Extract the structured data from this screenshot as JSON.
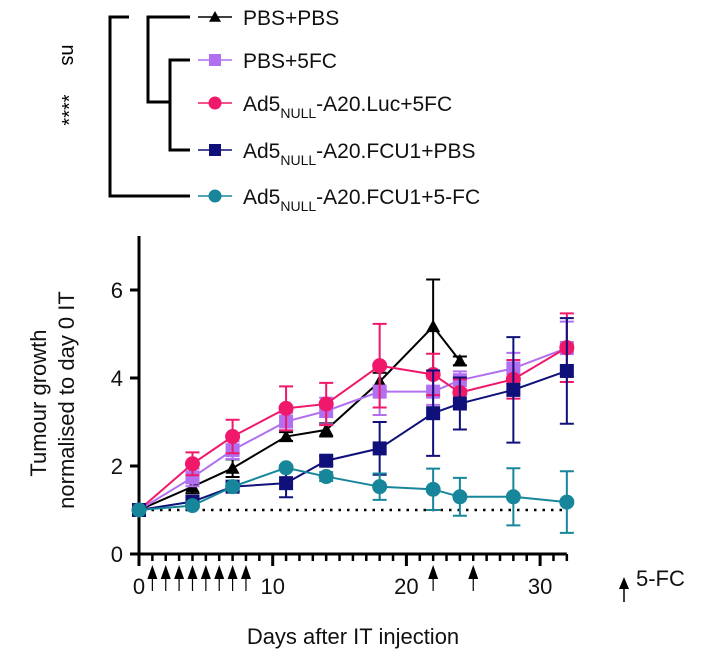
{
  "chart_data": {
    "type": "line",
    "xlabel": "Days after IT injection",
    "ylabel": [
      "Tumour growth",
      "normalised to day 0 IT"
    ],
    "xlim": [
      0,
      32
    ],
    "ylim": [
      0,
      7
    ],
    "xticks": [
      "0",
      "10",
      "20",
      "30"
    ],
    "yticks": [
      "0",
      "2",
      "4",
      "6"
    ],
    "grid": false,
    "reference_line": {
      "y": 1,
      "style": "dotted"
    },
    "dosing_arrows": {
      "label": "5-FC",
      "days": [
        1,
        2,
        3,
        4,
        5,
        6,
        7,
        8,
        22,
        25
      ]
    },
    "legend_placement": "top",
    "significance": {
      "inner": "ns",
      "outer": "****"
    },
    "series": [
      {
        "name": "PBS+PBS",
        "label": {
          "pre": "PBS+PBS",
          "sub": "",
          "post": ""
        },
        "color": "#000000",
        "marker": "triangle",
        "x": [
          0,
          4,
          7,
          11,
          14,
          18,
          22,
          24
        ],
        "y": [
          1,
          1.53,
          1.95,
          2.67,
          2.82,
          3.92,
          5.17,
          4.39
        ],
        "err": [
          0,
          0.15,
          0.2,
          0.1,
          0.15,
          0.2,
          1.07,
          0.1
        ]
      },
      {
        "name": "PBS+5FC",
        "label": {
          "pre": "PBS+5FC",
          "sub": "",
          "post": ""
        },
        "color": "#b070f0",
        "marker": "square",
        "x": [
          0,
          4,
          7,
          11,
          14,
          18,
          22,
          24,
          28,
          32
        ],
        "y": [
          1,
          1.74,
          2.36,
          3.01,
          3.25,
          3.69,
          3.69,
          3.95,
          4.22,
          4.68
        ],
        "err": [
          0,
          0.2,
          0.2,
          0.2,
          0.3,
          0.53,
          0.3,
          0.2,
          0.35,
          0.6
        ]
      },
      {
        "name": "Ad5NULL-A20.Luc+5FC",
        "label": {
          "pre": "Ad5",
          "sub": "NULL",
          "post": "-A20.Luc+5FC"
        },
        "color": "#f0186a",
        "marker": "circle",
        "x": [
          0,
          4,
          7,
          11,
          14,
          18,
          22,
          24,
          28,
          32
        ],
        "y": [
          1,
          2.05,
          2.67,
          3.31,
          3.41,
          4.28,
          4.08,
          3.67,
          3.97,
          4.69
        ],
        "err": [
          0,
          0.26,
          0.38,
          0.5,
          0.48,
          0.95,
          0.47,
          0.3,
          0.44,
          0.78
        ]
      },
      {
        "name": "Ad5NULL-A20.FCU1+PBS",
        "label": {
          "pre": "Ad5",
          "sub": "NULL",
          "post": "-A20.FCU1+PBS"
        },
        "color": "#10107a",
        "marker": "square",
        "x": [
          0,
          4,
          7,
          11,
          14,
          18,
          22,
          24,
          28,
          32
        ],
        "y": [
          1,
          1.19,
          1.53,
          1.61,
          2.12,
          2.4,
          3.2,
          3.42,
          3.73,
          4.16
        ],
        "err": [
          0,
          0.1,
          0.1,
          0.32,
          0.1,
          0.6,
          0.97,
          0.59,
          1.2,
          1.2
        ]
      },
      {
        "name": "Ad5NULL-A20.FCU1+5-FC",
        "label": {
          "pre": "Ad5",
          "sub": "NULL",
          "post": "-A20.FCU1+5-FC"
        },
        "color": "#17869a",
        "marker": "circle",
        "x": [
          0,
          4,
          7,
          11,
          14,
          18,
          22,
          24,
          28,
          32
        ],
        "y": [
          1,
          1.1,
          1.53,
          1.96,
          1.76,
          1.53,
          1.47,
          1.3,
          1.3,
          1.18
        ],
        "err": [
          0,
          0.05,
          0.05,
          0.05,
          0.1,
          0.3,
          0.47,
          0.43,
          0.65,
          0.7
        ]
      }
    ]
  }
}
